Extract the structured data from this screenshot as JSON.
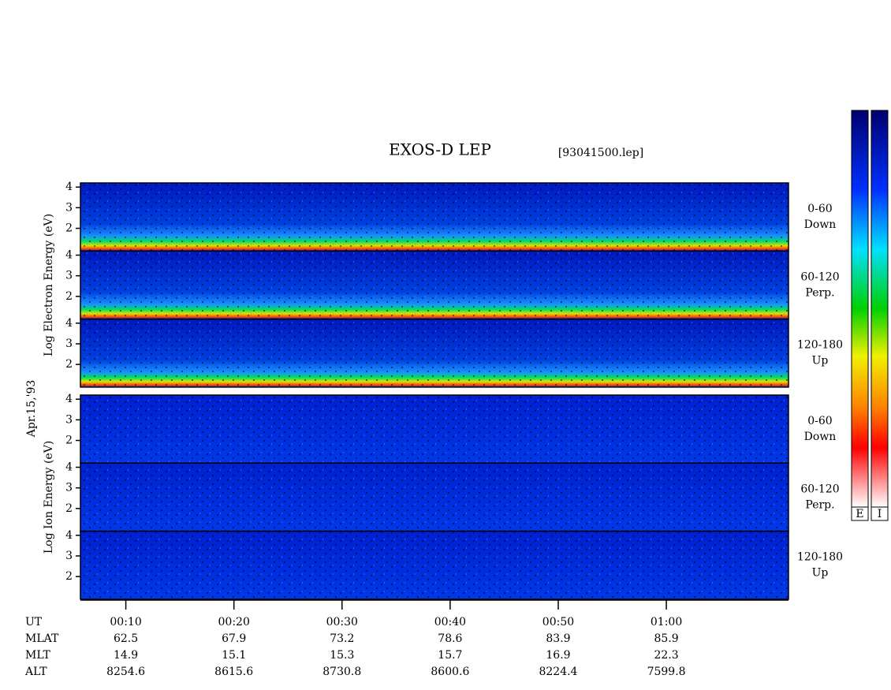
{
  "chart_data": {
    "type": "spectrogram",
    "title": "EXOS-D LEP",
    "subtitle": "[93041500.lep]",
    "date_label": "Apr.15,'93",
    "xlim": [
      5.8,
      71.3
    ],
    "xticks": [
      {
        "value": 10,
        "label": "00:10"
      },
      {
        "value": 20,
        "label": "00:20"
      },
      {
        "value": 30,
        "label": "00:30"
      },
      {
        "value": 40,
        "label": "00:40"
      },
      {
        "value": 50,
        "label": "00:50"
      },
      {
        "value": 60,
        "label": "01:00"
      }
    ],
    "xlabel": "UT",
    "ylim": [
      0.9,
      4.2
    ],
    "yticks": [
      2,
      3,
      4
    ],
    "groups": [
      {
        "ylabel": "Log Electron Energy (eV)",
        "kind": "electron",
        "panels": [
          {
            "label": [
              "0-60",
              "Down"
            ]
          },
          {
            "label": [
              "60-120",
              "Perp."
            ]
          },
          {
            "label": [
              "120-180",
              "Up"
            ]
          }
        ]
      },
      {
        "ylabel": "Log Ion Energy (eV)",
        "kind": "ion",
        "panels": [
          {
            "label": [
              "0-60",
              "Down"
            ]
          },
          {
            "label": [
              "60-120",
              "Perp."
            ]
          },
          {
            "label": [
              "120-180",
              "Up"
            ]
          }
        ]
      }
    ],
    "orbit_rows": [
      {
        "name": "MLAT",
        "values": [
          62.5,
          67.9,
          73.2,
          78.6,
          83.9,
          85.9
        ]
      },
      {
        "name": "MLT",
        "values": [
          14.9,
          15.1,
          15.3,
          15.7,
          16.9,
          22.3
        ]
      },
      {
        "name": "ALT",
        "values": [
          8254.6,
          8615.6,
          8730.8,
          8600.6,
          8224.4,
          7599.8
        ]
      }
    ],
    "colorbars": [
      "E",
      "I"
    ]
  }
}
